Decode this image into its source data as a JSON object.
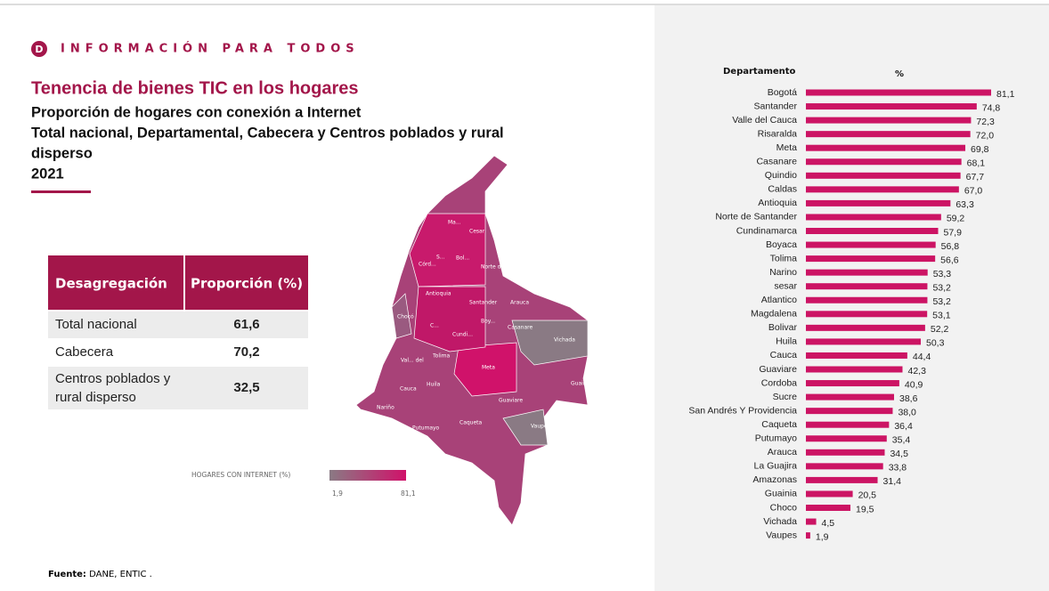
{
  "header": {
    "brand": "INFORMACIÓN PARA TODOS",
    "logo": "D",
    "title": "Tenencia de bienes TIC en los hogares",
    "subtitle_lines": [
      "Proporción de hogares con conexión a Internet",
      "Total nacional, Departamental, Cabecera y Centros poblados y rural",
      "disperso",
      "2021"
    ]
  },
  "table": {
    "columns": [
      "Desagregación",
      "Proporción (%)"
    ],
    "rows": [
      [
        "Total nacional",
        "61,6"
      ],
      [
        "Cabecera",
        "70,2"
      ],
      [
        "Centros poblados y",
        "32,5"
      ]
    ],
    "row_extra": "rural disperso"
  },
  "map": {
    "labels": [
      "Ma...",
      "Cesar",
      "Córd...",
      "S...",
      "Bol...",
      "Norte de",
      "Antioquia",
      "Santander",
      "Arauca",
      "Boy...",
      "Casanare",
      "Vichada",
      "Chocó",
      "C...",
      "Cundi...",
      "Tolima",
      "Val... del",
      "Meta",
      "Guainia",
      "Huila",
      "Cauca",
      "Guaviare",
      "Nariño",
      "Caqueta",
      "Putumayo",
      "Vaupes",
      "Amazonas"
    ],
    "legend_title": "HOGARES CON INTERNET (%)",
    "legend_min": "1,9",
    "legend_max": "81,1"
  },
  "chart_data": {
    "type": "hbar",
    "category_header": "Departamento",
    "value_header": "%",
    "color": "#cc1464",
    "categories": [
      "Bogotá",
      "Santander",
      "Valle del Cauca",
      "Risaralda",
      "Meta",
      "Casanare",
      "Quindio",
      "Caldas",
      "Antioquia",
      "Norte de Santander",
      "Cundinamarca",
      "Boyaca",
      "Tolima",
      "Narino",
      "sesar",
      "Atlantico",
      "Magdalena",
      "Bolivar",
      "Huila",
      "Cauca",
      "Guaviare",
      "Cordoba",
      "Sucre",
      "San Andrés Y Providencia",
      "Caqueta",
      "Putumayo",
      "Arauca",
      "La Guajira",
      "Amazonas",
      "Guainia",
      "Choco",
      "Vichada",
      "Vaupes"
    ],
    "values": [
      81.1,
      74.8,
      72.3,
      72.0,
      69.8,
      68.1,
      67.7,
      67.0,
      63.3,
      59.2,
      57.9,
      56.8,
      56.6,
      53.3,
      53.2,
      53.2,
      53.1,
      52.2,
      50.3,
      44.4,
      42.3,
      40.9,
      38.6,
      38.0,
      36.4,
      35.4,
      34.5,
      33.8,
      31.4,
      20.5,
      19.5,
      4.5,
      1.9
    ],
    "value_labels": [
      "81,1",
      "74,8",
      "72,3",
      "72,0",
      "69,8",
      "68,1",
      "67,7",
      "67,0",
      "63,3",
      "59,2",
      "57,9",
      "56,8",
      "56,6",
      "53,3",
      "53,2",
      "53,2",
      "53,1",
      "52,2",
      "50,3",
      "44,4",
      "42,3",
      "40,9",
      "38,6",
      "38,0",
      "36,4",
      "35,4",
      "34,5",
      "33,8",
      "31,4",
      "20,5",
      "19,5",
      "4,5",
      "1,9"
    ]
  },
  "source": {
    "label": "Fuente:",
    "text": "DANE, ENTIC ."
  }
}
